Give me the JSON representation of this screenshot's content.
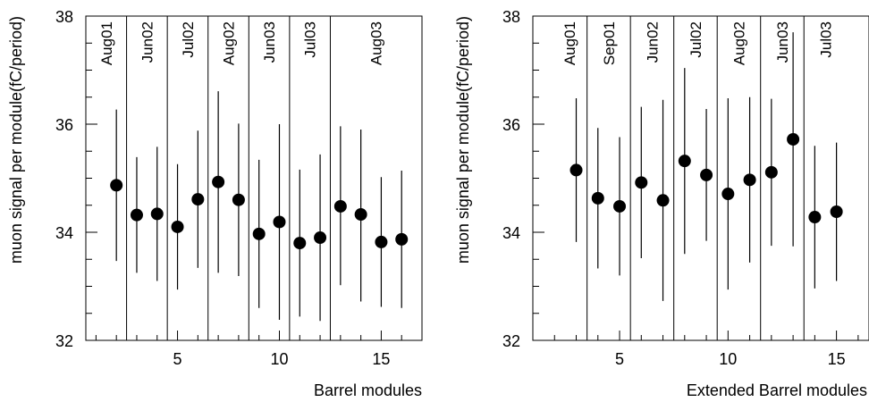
{
  "chart_data": [
    {
      "type": "scatter",
      "title": "",
      "xlabel": "Barrel modules",
      "ylabel": "muon signal per module(fC/period)",
      "xlim": [
        0.5,
        17
      ],
      "ylim": [
        32,
        38
      ],
      "xticks": [
        5,
        10,
        15
      ],
      "yticks": [
        32,
        34,
        36,
        38
      ],
      "grid": false,
      "period_boundaries": [
        2.5,
        4.5,
        6.5,
        8.5,
        10.5,
        12.5
      ],
      "periods": [
        {
          "label": "Aug01",
          "center": 1.5
        },
        {
          "label": "Jun02",
          "center": 3.5
        },
        {
          "label": "Jul02",
          "center": 5.5
        },
        {
          "label": "Aug02",
          "center": 7.5
        },
        {
          "label": "Jun03",
          "center": 9.5
        },
        {
          "label": "Jul03",
          "center": 11.5
        },
        {
          "label": "Aug03",
          "center": 14.75
        }
      ],
      "points": [
        {
          "x": 2,
          "y": 34.87,
          "err_lo": 33.47,
          "err_hi": 36.27
        },
        {
          "x": 3,
          "y": 34.32,
          "err_lo": 33.25,
          "err_hi": 35.39
        },
        {
          "x": 4,
          "y": 34.34,
          "err_lo": 33.1,
          "err_hi": 35.58
        },
        {
          "x": 5,
          "y": 34.1,
          "err_lo": 32.94,
          "err_hi": 35.26
        },
        {
          "x": 6,
          "y": 34.61,
          "err_lo": 33.34,
          "err_hi": 35.88
        },
        {
          "x": 7,
          "y": 34.93,
          "err_lo": 33.25,
          "err_hi": 36.61
        },
        {
          "x": 8,
          "y": 34.6,
          "err_lo": 33.19,
          "err_hi": 36.01
        },
        {
          "x": 9,
          "y": 33.97,
          "err_lo": 32.6,
          "err_hi": 35.34
        },
        {
          "x": 10,
          "y": 34.19,
          "err_lo": 32.38,
          "err_hi": 36.0
        },
        {
          "x": 11,
          "y": 33.8,
          "err_lo": 32.44,
          "err_hi": 35.16
        },
        {
          "x": 12,
          "y": 33.9,
          "err_lo": 32.36,
          "err_hi": 35.44
        },
        {
          "x": 13,
          "y": 34.48,
          "err_lo": 33.02,
          "err_hi": 35.96
        },
        {
          "x": 14,
          "y": 34.33,
          "err_lo": 32.72,
          "err_hi": 35.9
        },
        {
          "x": 15,
          "y": 33.82,
          "err_lo": 32.62,
          "err_hi": 35.02
        },
        {
          "x": 16,
          "y": 33.87,
          "err_lo": 32.6,
          "err_hi": 35.14
        }
      ]
    },
    {
      "type": "scatter",
      "title": "",
      "xlabel": "Extended Barrel modules",
      "ylabel": "muon signal per module(fC/period)",
      "xlim": [
        1,
        16.5
      ],
      "ylim": [
        32,
        38
      ],
      "xticks": [
        5,
        10,
        15
      ],
      "yticks": [
        32,
        34,
        36,
        38
      ],
      "grid": false,
      "period_boundaries": [
        3.5,
        5.5,
        7.5,
        9.5,
        11.5,
        13.5
      ],
      "periods": [
        {
          "label": "Aug01",
          "center": 2.7
        },
        {
          "label": "Sep01",
          "center": 4.5
        },
        {
          "label": "Jun02",
          "center": 6.5
        },
        {
          "label": "Jul02",
          "center": 8.5
        },
        {
          "label": "Aug02",
          "center": 10.5
        },
        {
          "label": "Jun03",
          "center": 12.5
        },
        {
          "label": "Jul03",
          "center": 14.5
        }
      ],
      "points": [
        {
          "x": 3,
          "y": 35.15,
          "err_lo": 33.82,
          "err_hi": 36.48
        },
        {
          "x": 4,
          "y": 34.63,
          "err_lo": 33.33,
          "err_hi": 35.93
        },
        {
          "x": 5,
          "y": 34.48,
          "err_lo": 33.2,
          "err_hi": 35.76
        },
        {
          "x": 6,
          "y": 34.92,
          "err_lo": 33.52,
          "err_hi": 36.32
        },
        {
          "x": 7,
          "y": 34.59,
          "err_lo": 32.73,
          "err_hi": 36.45
        },
        {
          "x": 8,
          "y": 35.32,
          "err_lo": 33.6,
          "err_hi": 37.04
        },
        {
          "x": 9,
          "y": 35.06,
          "err_lo": 33.84,
          "err_hi": 36.28
        },
        {
          "x": 10,
          "y": 34.71,
          "err_lo": 32.94,
          "err_hi": 36.48
        },
        {
          "x": 11,
          "y": 34.97,
          "err_lo": 33.44,
          "err_hi": 36.5
        },
        {
          "x": 12,
          "y": 35.11,
          "err_lo": 33.75,
          "err_hi": 36.47
        },
        {
          "x": 13,
          "y": 35.72,
          "err_lo": 33.74,
          "err_hi": 37.7
        },
        {
          "x": 14,
          "y": 34.28,
          "err_lo": 32.96,
          "err_hi": 35.6
        },
        {
          "x": 15,
          "y": 34.38,
          "err_lo": 33.1,
          "err_hi": 35.66
        }
      ]
    }
  ]
}
